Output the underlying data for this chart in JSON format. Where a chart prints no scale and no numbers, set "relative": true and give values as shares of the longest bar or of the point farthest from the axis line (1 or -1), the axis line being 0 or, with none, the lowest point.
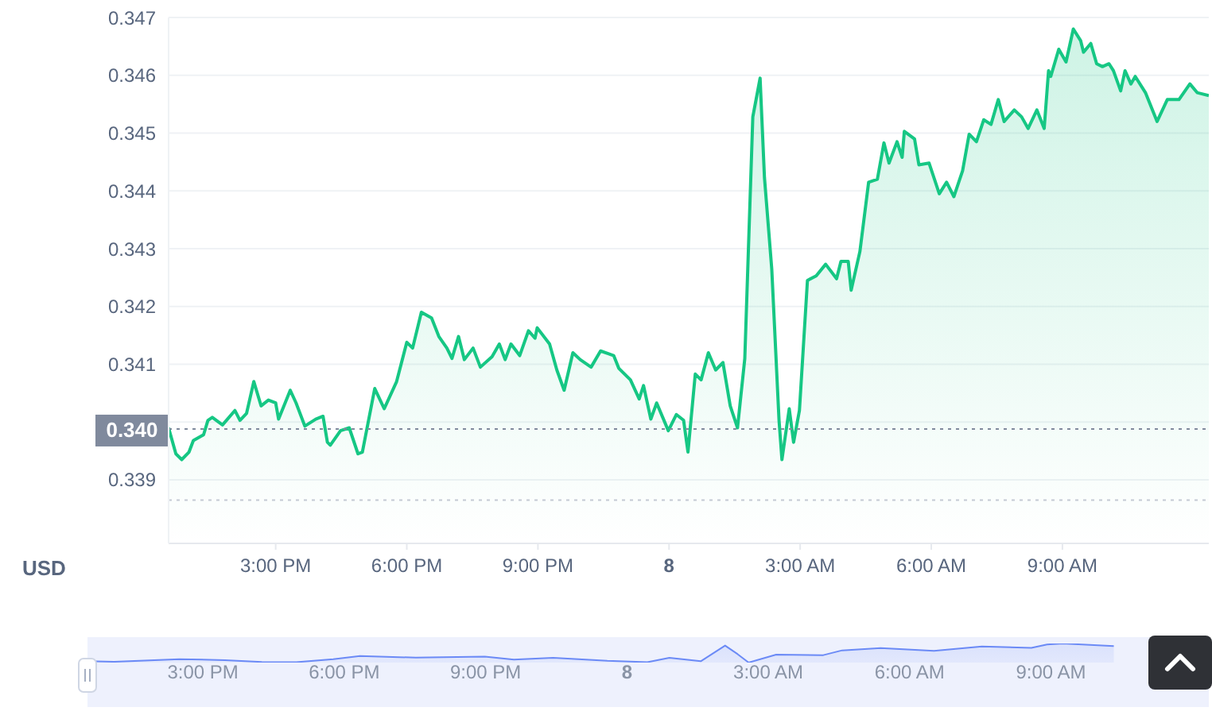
{
  "chart_data": [
    {
      "type": "area",
      "ylabel": "USD",
      "grid": "y",
      "x": [
        "--01-07T12:33",
        "--01-07T12:43",
        "--01-07T12:51",
        "--01-07T13:01",
        "--01-07T13:07",
        "--01-07T13:21",
        "--01-07T13:27",
        "--01-07T13:33",
        "--01-07T13:47",
        "--01-07T14:04",
        "--01-07T14:11",
        "--01-07T14:20",
        "--01-07T14:30",
        "--01-07T14:40",
        "--01-07T14:50",
        "--01-07T15:00",
        "--01-07T15:04",
        "--01-07T15:20",
        "--01-07T15:28",
        "--01-07T15:40",
        "--01-07T15:55",
        "--01-07T16:05",
        "--01-07T16:11",
        "--01-07T16:15",
        "--01-07T16:29",
        "--01-07T16:41",
        "--01-07T16:53",
        "--01-07T16:59",
        "--01-07T17:16",
        "--01-07T17:29",
        "--01-07T17:46",
        "--01-07T18:00",
        "--01-07T18:08",
        "--01-07T18:20",
        "--01-07T18:34",
        "--01-07T18:44",
        "--01-07T18:55",
        "--01-07T19:02",
        "--01-07T19:11",
        "--01-07T19:19",
        "--01-07T19:31",
        "--01-07T19:41",
        "--01-07T19:57",
        "--01-07T20:07",
        "--01-07T20:15",
        "--01-07T20:23",
        "--01-07T20:35",
        "--01-07T20:47",
        "--01-07T20:56",
        "--01-07T20:59",
        "--01-07T21:16",
        "--01-07T21:26",
        "--01-07T21:36",
        "--01-07T21:48",
        "--01-07T21:58",
        "--01-07T22:13",
        "--01-07T22:26",
        "--01-07T22:44",
        "--01-07T22:51",
        "--01-07T23:07",
        "--01-07T23:19",
        "--01-07T23:25",
        "--01-07T23:35",
        "--01-07T23:43",
        "--01-07T23:59",
        "--01-08T00:10",
        "--01-08T00:20",
        "--01-08T00:26",
        "--01-08T00:36",
        "--01-08T00:44",
        "--01-08T00:54",
        "--01-08T01:04",
        "--01-08T01:14",
        "--01-08T01:24",
        "--01-08T01:34",
        "--01-08T01:44",
        "--01-08T01:55",
        "--01-08T02:05",
        "--01-08T02:11",
        "--01-08T02:21",
        "--01-08T02:31",
        "--01-08T02:35",
        "--01-08T02:45",
        "--01-08T02:51",
        "--01-08T02:59",
        "--01-08T03:10",
        "--01-08T03:22",
        "--01-08T03:35",
        "--01-08T03:50",
        "--01-08T03:56",
        "--01-08T04:06",
        "--01-08T04:10",
        "--01-08T04:22",
        "--01-08T04:34",
        "--01-08T04:46",
        "--01-08T04:55",
        "--01-08T05:02",
        "--01-08T05:13",
        "--01-08T05:20",
        "--01-08T05:23",
        "--01-08T05:37",
        "--01-08T05:43",
        "--01-08T05:57",
        "--01-08T06:11",
        "--01-08T06:21",
        "--01-08T06:31",
        "--01-08T06:43",
        "--01-08T06:52",
        "--01-08T07:02",
        "--01-08T07:12",
        "--01-08T07:22",
        "--01-08T07:32",
        "--01-08T07:40",
        "--01-08T07:54",
        "--01-08T08:04",
        "--01-08T08:13",
        "--01-08T08:25",
        "--01-08T08:35",
        "--01-08T08:41",
        "--01-08T08:44",
        "--01-08T08:55",
        "--01-08T09:05",
        "--01-08T09:15",
        "--01-08T09:25",
        "--01-08T09:29",
        "--01-08T09:39",
        "--01-08T09:47",
        "--01-08T09:55",
        "--01-08T10:04",
        "--01-08T10:10",
        "--01-08T10:20",
        "--01-08T10:26",
        "--01-08T10:34",
        "--01-08T10:40",
        "--01-08T10:54",
        "--01-08T11:10",
        "--01-08T11:24",
        "--01-08T11:40",
        "--01-08T11:55",
        "--01-08T12:05",
        "--01-08T12:21"
      ],
      "series": [
        {
          "color": "#16c784",
          "values": [
            0.3399,
            0.33945,
            0.33935,
            0.33948,
            0.33968,
            0.33978,
            0.34003,
            0.34008,
            0.33995,
            0.3402,
            0.34003,
            0.34015,
            0.3407,
            0.34028,
            0.34038,
            0.34033,
            0.34005,
            0.34055,
            0.34033,
            0.33993,
            0.34005,
            0.3401,
            0.33965,
            0.3396,
            0.33985,
            0.3399,
            0.33945,
            0.33948,
            0.34058,
            0.34023,
            0.3407,
            0.34138,
            0.34128,
            0.3419,
            0.3418,
            0.34148,
            0.34128,
            0.3411,
            0.34148,
            0.34108,
            0.34128,
            0.34095,
            0.34113,
            0.34135,
            0.34108,
            0.34135,
            0.34115,
            0.34158,
            0.34145,
            0.34163,
            0.34135,
            0.3409,
            0.34055,
            0.3412,
            0.34108,
            0.34095,
            0.34123,
            0.34115,
            0.34093,
            0.34073,
            0.3404,
            0.34063,
            0.34005,
            0.34033,
            0.33985,
            0.34013,
            0.34003,
            0.33948,
            0.34083,
            0.34073,
            0.3412,
            0.3409,
            0.34103,
            0.34028,
            0.3399,
            0.3411,
            0.34528,
            0.34595,
            0.34423,
            0.34265,
            0.34003,
            0.33935,
            0.34023,
            0.33965,
            0.3402,
            0.34245,
            0.34253,
            0.34273,
            0.34248,
            0.34278,
            0.34278,
            0.34228,
            0.34295,
            0.34415,
            0.3442,
            0.34483,
            0.34448,
            0.34485,
            0.34458,
            0.34503,
            0.3449,
            0.34445,
            0.34448,
            0.34395,
            0.34415,
            0.3439,
            0.34435,
            0.34498,
            0.34485,
            0.34523,
            0.34515,
            0.34558,
            0.3452,
            0.3454,
            0.34528,
            0.34508,
            0.3454,
            0.34508,
            0.34608,
            0.34598,
            0.34645,
            0.34623,
            0.3468,
            0.3466,
            0.3464,
            0.34655,
            0.3462,
            0.34615,
            0.3462,
            0.34608,
            0.34573,
            0.34608,
            0.34585,
            0.34598,
            0.3457,
            0.3452,
            0.34558,
            0.34558,
            0.34585,
            0.3457,
            0.34565
          ]
        }
      ],
      "xlim": [
        "--01-07T12:33",
        "--01-08T12:21"
      ],
      "xticks": [
        {
          "value": "--01-07T15:00",
          "label": "3:00 PM"
        },
        {
          "value": "--01-07T18:00",
          "label": "6:00 PM"
        },
        {
          "value": "--01-07T21:00",
          "label": "9:00 PM"
        },
        {
          "value": "--01-08T00:00",
          "label": "8"
        },
        {
          "value": "--01-08T03:00",
          "label": "3:00 AM"
        },
        {
          "value": "--01-08T06:00",
          "label": "6:00 AM"
        },
        {
          "value": "--01-08T09:00",
          "label": "9:00 AM"
        }
      ],
      "ylim": [
        0.3379,
        0.347
      ],
      "yticks": [
        0.339,
        {
          "value": 0.34,
          "label": null
        },
        0.341,
        0.342,
        0.343,
        0.344,
        0.345,
        0.346,
        0.347
      ],
      "ref_lines": [
        {
          "axis": "y",
          "value": 0.33988,
          "label": "0.340",
          "color": "#808a9d",
          "line_style": "dotted"
        },
        {
          "axis": "y",
          "value": 0.33865,
          "label": null,
          "color": "#c4cad4",
          "line_style": "dotted"
        }
      ]
    },
    {
      "type": "area",
      "relative": true,
      "tick_labels": "x",
      "x": [
        "--01-07T12:33",
        "--01-07T13:07",
        "--01-07T14:30",
        "--01-07T15:28",
        "--01-07T16:15",
        "--01-07T16:59",
        "--01-07T17:46",
        "--01-07T18:20",
        "--01-07T19:31",
        "--01-07T20:59",
        "--01-07T21:36",
        "--01-07T22:26",
        "--01-07T23:35",
        "--01-08T00:26",
        "--01-08T00:54",
        "--01-08T01:34",
        "--01-08T02:05",
        "--01-08T02:21",
        "--01-08T02:35",
        "--01-08T03:10",
        "--01-08T04:10",
        "--01-08T04:34",
        "--01-08T05:23",
        "--01-08T06:31",
        "--01-08T07:32",
        "--01-08T08:35",
        "--01-08T08:55",
        "--01-08T09:15",
        "--01-08T10:20"
      ],
      "series": [
        {
          "color": "#6b8af6",
          "values": [
            0.07,
            0.04,
            0.18,
            0.13,
            0.03,
            0.02,
            0.18,
            0.34,
            0.26,
            0.31,
            0.16,
            0.25,
            0.09,
            0.02,
            0.25,
            0.07,
            0.89,
            0.44,
            0,
            0.42,
            0.39,
            0.64,
            0.76,
            0.61,
            0.84,
            0.77,
            0.95,
            1,
            0.86
          ]
        }
      ],
      "xlim": [
        "--01-07T12:33",
        "--01-08T12:21"
      ],
      "xticks": [
        {
          "value": "--01-07T15:00",
          "label": "3:00 PM"
        },
        {
          "value": "--01-07T18:00",
          "label": "6:00 PM"
        },
        {
          "value": "--01-07T21:00",
          "label": "9:00 PM"
        },
        {
          "value": "--01-08T00:00",
          "label": "8"
        },
        {
          "value": "--01-08T03:00",
          "label": "3:00 AM"
        },
        {
          "value": "--01-08T06:00",
          "label": "6:00 AM"
        },
        {
          "value": "--01-08T09:00",
          "label": "9:00 AM"
        }
      ]
    }
  ]
}
